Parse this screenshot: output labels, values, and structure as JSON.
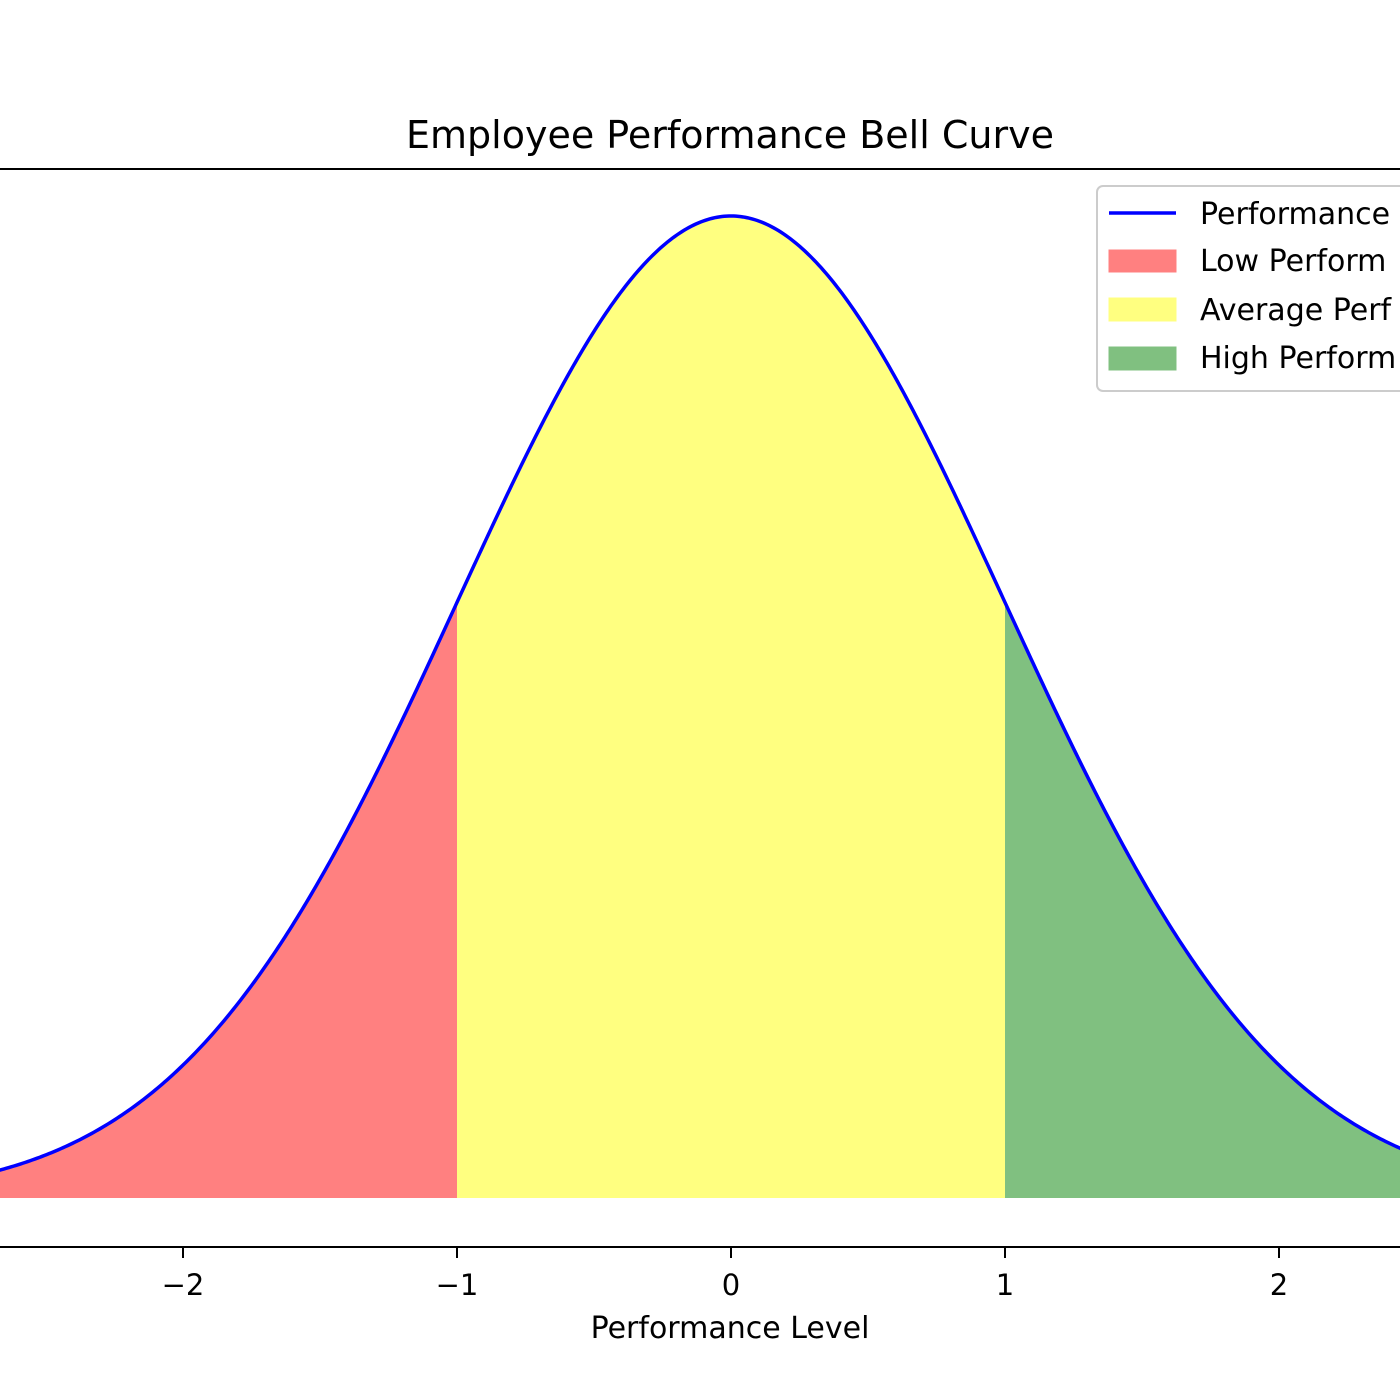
{
  "chart_data": {
    "type": "area",
    "title": "Employee Performance Bell Curve",
    "xlabel": "Performance Level",
    "ylabel": "",
    "xlim": [
      -2.67,
      2.5
    ],
    "ylim": [
      -0.02,
      0.42
    ],
    "x_ticks": [
      -2,
      -1,
      0,
      1,
      2
    ],
    "x_tick_labels": [
      "−2",
      "−1",
      "0",
      "1",
      "2"
    ],
    "curve": {
      "name": "Performance",
      "distribution": "standard normal",
      "mean": 0,
      "std": 1,
      "color": "#0000ff"
    },
    "regions": [
      {
        "name": "Low Perform",
        "from": -2.67,
        "to": -1,
        "color": "#ff8080"
      },
      {
        "name": "Average Perf",
        "from": -1,
        "to": 1,
        "color": "#ffff80"
      },
      {
        "name": "High Perform",
        "from": 1,
        "to": 2.5,
        "color": "#80c080"
      }
    ],
    "legend": {
      "placement": "top-right",
      "entries": [
        "Performance",
        "Low Perform",
        "Average Perf",
        "High Perform"
      ]
    },
    "grid": false
  }
}
